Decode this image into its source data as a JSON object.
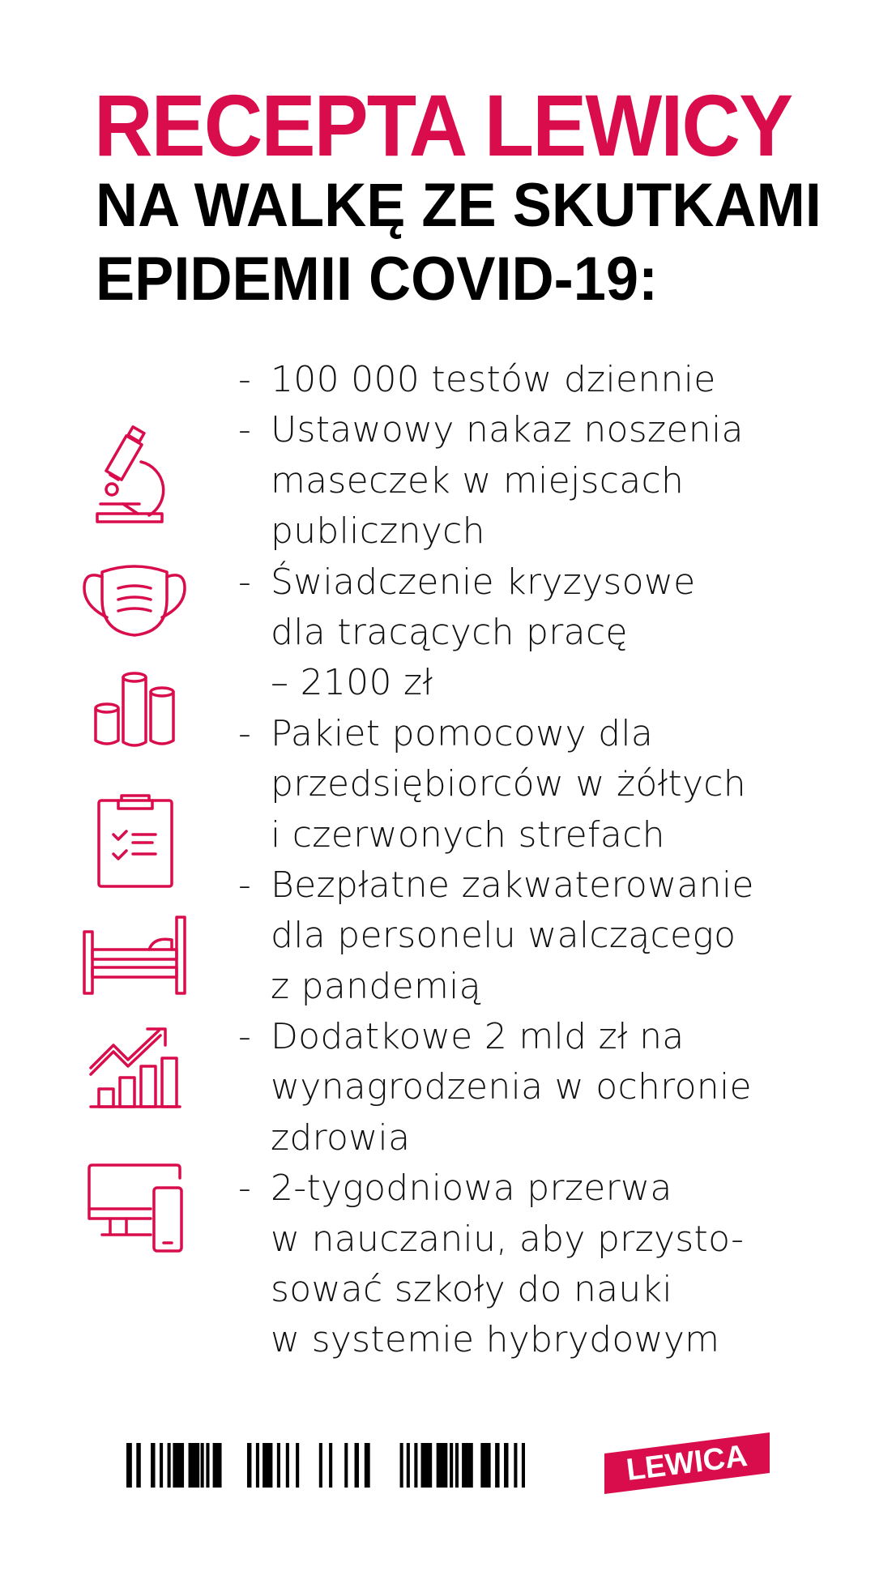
{
  "header": {
    "title": "RECEPTA LEWICY",
    "subtitle_line1": "NA WALKĘ ZE SKUTKAMI",
    "subtitle_line2": "EPIDEMII COVID-19:"
  },
  "accent_color": "#d90d4c",
  "list_lines": [
    {
      "dash": "-",
      "text": "100 000 testów dziennie"
    },
    {
      "dash": "-",
      "text": "Ustawowy nakaz noszenia"
    },
    {
      "dash": "",
      "text": "maseczek w miejscach"
    },
    {
      "dash": "",
      "text": "publicznych"
    },
    {
      "dash": "-",
      "text": "Świadczenie kryzysowe"
    },
    {
      "dash": "",
      "text": "dla tracących pracę"
    },
    {
      "dash": "",
      "text": "– 2100 zł"
    },
    {
      "dash": "-",
      "text": "Pakiet pomocowy dla"
    },
    {
      "dash": "",
      "text": "przedsiębiorców w żółtych"
    },
    {
      "dash": "",
      "text": "i czerwonych strefach"
    },
    {
      "dash": "-",
      "text": "Bezpłatne zakwaterowanie"
    },
    {
      "dash": "",
      "text": "dla personelu walczącego"
    },
    {
      "dash": "",
      "text": "z pandemią"
    },
    {
      "dash": "-",
      "text": "Dodatkowe 2 mld zł na"
    },
    {
      "dash": "",
      "text": "wynagrodzenia w ochronie"
    },
    {
      "dash": "",
      "text": "zdrowia"
    },
    {
      "dash": "-",
      "text": "2-tygodniowa przerwa"
    },
    {
      "dash": "",
      "text": "w nauczaniu, aby przysto-"
    },
    {
      "dash": "",
      "text": "sować szkoły do nauki"
    },
    {
      "dash": "",
      "text": "w systemie hybrydowym"
    }
  ],
  "icons": [
    "microscope-icon",
    "face-mask-icon",
    "coins-icon",
    "clipboard-checklist-icon",
    "bed-icon",
    "growth-chart-icon",
    "devices-icon"
  ],
  "footer": {
    "logo_text": "LEWICA"
  }
}
